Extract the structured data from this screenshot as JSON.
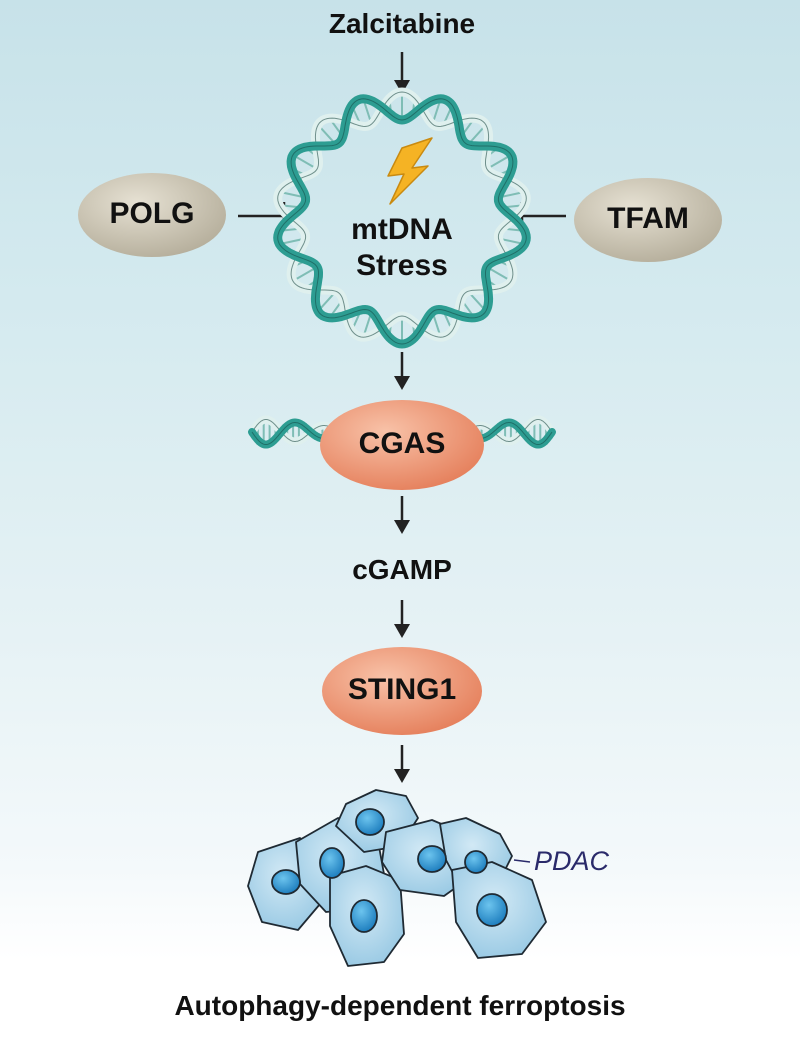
{
  "drug": {
    "label": "Zalcitabine"
  },
  "inhibitors": {
    "left": "POLG",
    "right": "TFAM"
  },
  "mtdna": {
    "line1": "mtDNA",
    "line2": "Stress"
  },
  "sensor": {
    "label": "CGAS"
  },
  "messenger": {
    "label": "cGAMP"
  },
  "adaptor": {
    "label": "STING1"
  },
  "cells": {
    "label": "PDAC"
  },
  "outcome": {
    "label": "Autophagy-dependent ferroptosis"
  },
  "colors": {
    "background_top": "#c7e2e9",
    "neutral_node": "#cbc5b4",
    "active_node": "#f1a07f",
    "dna_teal": "#2d9d92",
    "dna_pale": "#dff0ee",
    "cell_fill": "#a9d3ea",
    "nucleus": "#2e9fd5",
    "lightning": "#f5b324"
  }
}
